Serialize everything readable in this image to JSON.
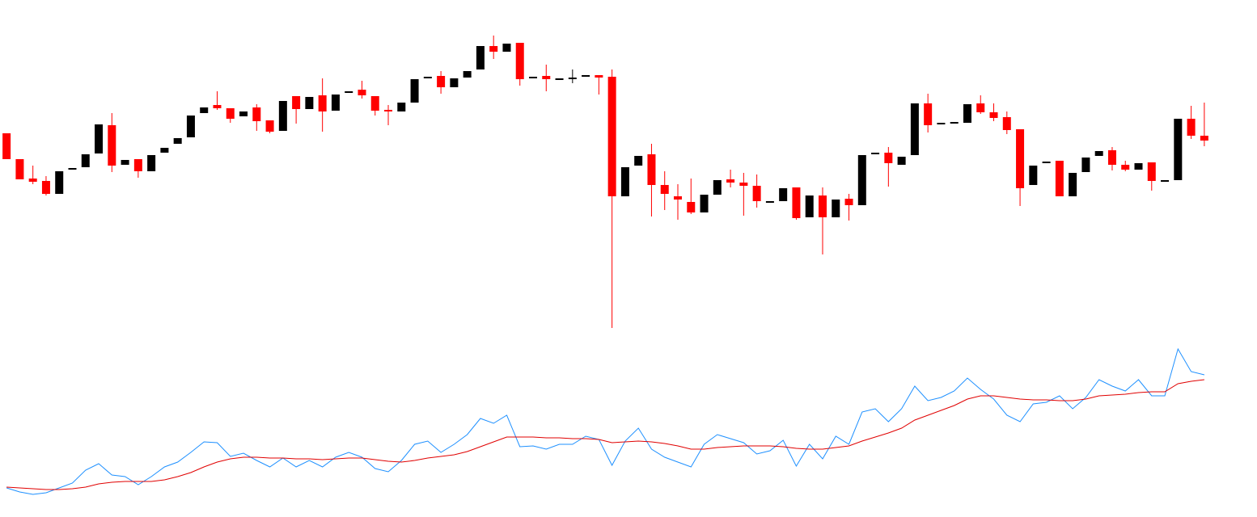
{
  "chart_data": [
    {
      "type": "candlestick",
      "up_color": "#000000",
      "down_color": "#ff0000",
      "ylim": [
        0,
        420
      ],
      "open": [
        255,
        223,
        199,
        196,
        180,
        210,
        213,
        230,
        265,
        216,
        223,
        208,
        231,
        242,
        250,
        280,
        290,
        286,
        276,
        287,
        271,
        258,
        301,
        285,
        302,
        283,
        305,
        309,
        301,
        284,
        282,
        293,
        323,
        326,
        312,
        324,
        334,
        363,
        356,
        367,
        323,
        326,
        321,
        322,
        325,
        327,
        325,
        177,
        215,
        229,
        191,
        177,
        170,
        157,
        179,
        198,
        194,
        190,
        169,
        171,
        188,
        151,
        178,
        151,
        174,
        166,
        229,
        231,
        216,
        228,
        292,
        266,
        267,
        268,
        292,
        281,
        275,
        260,
        191,
        218,
        221,
        177,
        207,
        227,
        234,
        216,
        210,
        219,
        195,
        197,
        273,
        252
      ],
      "high": [
        255,
        223,
        215,
        202,
        208,
        212,
        229,
        266,
        280,
        222,
        223,
        228,
        237,
        249,
        277,
        287,
        307,
        286,
        282,
        291,
        271,
        295,
        301,
        300,
        323,
        303,
        307,
        320,
        301,
        290,
        293,
        322,
        325,
        332,
        323,
        332,
        363,
        376,
        366,
        367,
        325,
        340,
        323,
        334,
        327,
        327,
        334,
        213,
        227,
        242,
        208,
        192,
        199,
        179,
        197,
        210,
        206,
        204,
        171,
        187,
        188,
        178,
        188,
        173,
        180,
        228,
        231,
        238,
        226,
        292,
        304,
        268,
        269,
        291,
        302,
        292,
        282,
        260,
        215,
        220,
        221,
        206,
        225,
        233,
        238,
        221,
        218,
        219,
        197,
        273,
        289,
        293
      ],
      "low": [
        223,
        198,
        192,
        178,
        180,
        210,
        213,
        230,
        207,
        216,
        200,
        208,
        231,
        242,
        250,
        280,
        284,
        268,
        276,
        258,
        255,
        258,
        267,
        285,
        257,
        283,
        305,
        298,
        277,
        265,
        282,
        293,
        323,
        304,
        312,
        324,
        334,
        347,
        356,
        314,
        323,
        307,
        321,
        317,
        325,
        303,
        14,
        177,
        215,
        152,
        160,
        148,
        155,
        157,
        179,
        188,
        153,
        163,
        169,
        171,
        148,
        151,
        105,
        151,
        147,
        166,
        229,
        189,
        216,
        228,
        256,
        266,
        267,
        268,
        279,
        270,
        254,
        165,
        191,
        218,
        177,
        177,
        207,
        227,
        209,
        208,
        210,
        184,
        195,
        197,
        248,
        239
      ],
      "close": [
        223,
        198,
        195,
        180,
        208,
        212,
        229,
        266,
        215,
        222,
        208,
        228,
        237,
        249,
        277,
        287,
        286,
        273,
        282,
        270,
        257,
        295,
        285,
        300,
        282,
        303,
        307,
        302,
        283,
        282,
        293,
        322,
        325,
        312,
        323,
        332,
        363,
        356,
        366,
        322,
        325,
        322,
        323,
        324,
        327,
        324,
        177,
        213,
        227,
        191,
        180,
        173,
        157,
        179,
        197,
        194,
        190,
        171,
        171,
        187,
        150,
        178,
        151,
        173,
        166,
        228,
        231,
        218,
        226,
        292,
        265,
        268,
        269,
        291,
        281,
        274,
        259,
        187,
        215,
        220,
        177,
        206,
        225,
        233,
        216,
        210,
        218,
        196,
        197,
        273,
        252,
        246
      ]
    },
    {
      "type": "line",
      "ylim": [
        0,
        220
      ],
      "series": [
        {
          "color": "#1e90ff",
          "values": [
            36,
            31,
            28,
            30,
            36,
            42,
            58,
            66,
            52,
            50,
            40,
            50,
            62,
            68,
            80,
            93,
            92,
            75,
            79,
            70,
            62,
            73,
            62,
            70,
            62,
            74,
            80,
            74,
            60,
            56,
            70,
            90,
            94,
            80,
            90,
            102,
            122,
            116,
            126,
            87,
            88,
            84,
            90,
            90,
            100,
            96,
            64,
            94,
            110,
            84,
            74,
            68,
            62,
            90,
            102,
            97,
            92,
            78,
            82,
            95,
            63,
            90,
            72,
            100,
            90,
            130,
            134,
            118,
            134,
            162,
            144,
            148,
            156,
            172,
            158,
            146,
            126,
            118,
            140,
            142,
            150,
            134,
            148,
            170,
            162,
            156,
            170,
            150,
            150,
            208,
            180,
            176
          ]
        },
        {
          "color": "#e00000",
          "values": [
            37,
            36,
            35,
            34,
            34,
            35,
            37,
            41,
            43,
            44,
            44,
            44,
            46,
            50,
            55,
            62,
            68,
            72,
            74,
            74,
            73,
            73,
            72,
            72,
            71,
            72,
            73,
            73,
            71,
            69,
            68,
            70,
            73,
            75,
            77,
            81,
            87,
            93,
            99,
            99,
            99,
            98,
            98,
            97,
            97,
            96,
            92,
            93,
            94,
            93,
            91,
            88,
            84,
            84,
            86,
            87,
            88,
            88,
            88,
            87,
            85,
            84,
            84,
            86,
            88,
            94,
            99,
            104,
            110,
            120,
            126,
            132,
            138,
            146,
            150,
            150,
            148,
            146,
            145,
            145,
            144,
            144,
            146,
            150,
            151,
            152,
            154,
            155,
            155,
            165,
            168,
            170
          ]
        }
      ]
    }
  ]
}
